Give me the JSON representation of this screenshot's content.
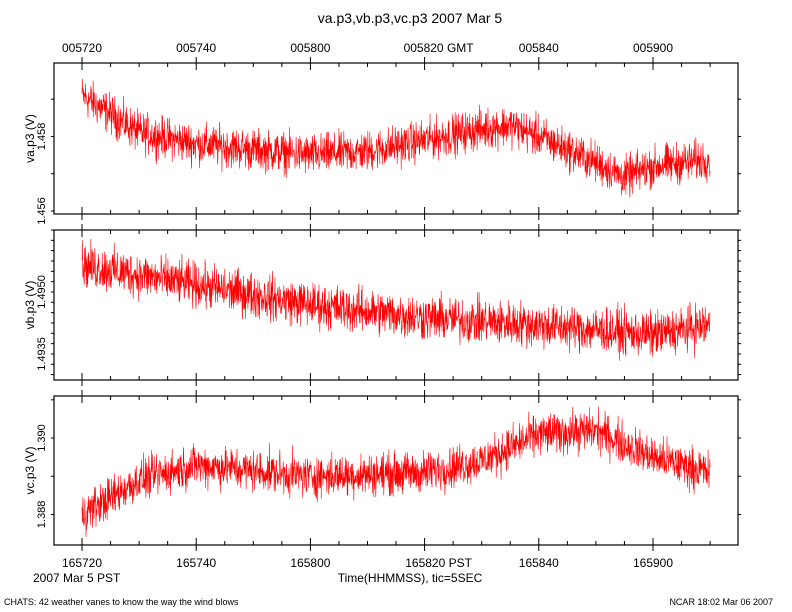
{
  "title": "va.p3,vb.p3,vc.p3 2007 Mar 5",
  "top_axis": {
    "tick_labels": [
      "005720",
      "005740",
      "005800",
      "005820 GMT",
      "005840",
      "005900"
    ]
  },
  "bottom_axis": {
    "tick_labels": [
      "165720",
      "165740",
      "165800",
      "165820 PST",
      "165840",
      "165900"
    ],
    "date_label": "2007 Mar  5 PST",
    "xlabel": "Time(HHMMSS), tic=5SEC"
  },
  "footer": {
    "left": "CHATS: 42 weather vanes to know the way the wind blows",
    "right": "NCAR 18:02 Mar 06 2007"
  },
  "series_color": "#ff0000",
  "chart_data": [
    {
      "type": "line",
      "ylabel": "va.p3 (V)",
      "ytick_labels": [
        "1.456",
        "1.458"
      ],
      "ytick_values": [
        1.456,
        1.458
      ],
      "yminor_step": 0.001,
      "ylim": [
        1.45592,
        1.45997
      ],
      "x_seconds_after_165720": [
        0,
        10,
        20,
        40,
        50,
        60,
        70,
        75,
        80,
        90,
        95,
        100,
        110
      ],
      "y_mean": [
        1.4591,
        1.4581,
        1.4578,
        1.4575,
        1.4576,
        1.4579,
        1.4582,
        1.4583,
        1.458,
        1.4573,
        1.4569,
        1.4572,
        1.4574
      ],
      "noise_halfwidth": 0.0005
    },
    {
      "type": "line",
      "ylabel": "vb.p3 (V)",
      "ytick_labels": [
        "1.4935",
        "1.4950"
      ],
      "ytick_values": [
        1.4935,
        1.495
      ],
      "yminor_step": 0.00025,
      "ylim": [
        1.49287,
        1.4965
      ],
      "x_seconds_after_165720": [
        0,
        20,
        40,
        60,
        80,
        100,
        110
      ],
      "y_mean": [
        1.49565,
        1.49517,
        1.49469,
        1.49438,
        1.4942,
        1.49397,
        1.4942
      ],
      "noise_halfwidth": 0.0005
    },
    {
      "type": "line",
      "ylabel": "vc.p3 (V)",
      "ytick_labels": [
        "1.388",
        "1.390"
      ],
      "ytick_values": [
        1.388,
        1.39
      ],
      "yminor_step": 0.001,
      "ylim": [
        1.3872,
        1.3911
      ],
      "x_seconds_after_165720": [
        0,
        10,
        20,
        40,
        60,
        70,
        80,
        90,
        100,
        110
      ],
      "y_mean": [
        1.388,
        1.3889,
        1.3893,
        1.389,
        1.3891,
        1.3894,
        1.3901,
        1.3902,
        1.3895,
        1.3891
      ],
      "noise_halfwidth": 0.0005
    }
  ]
}
